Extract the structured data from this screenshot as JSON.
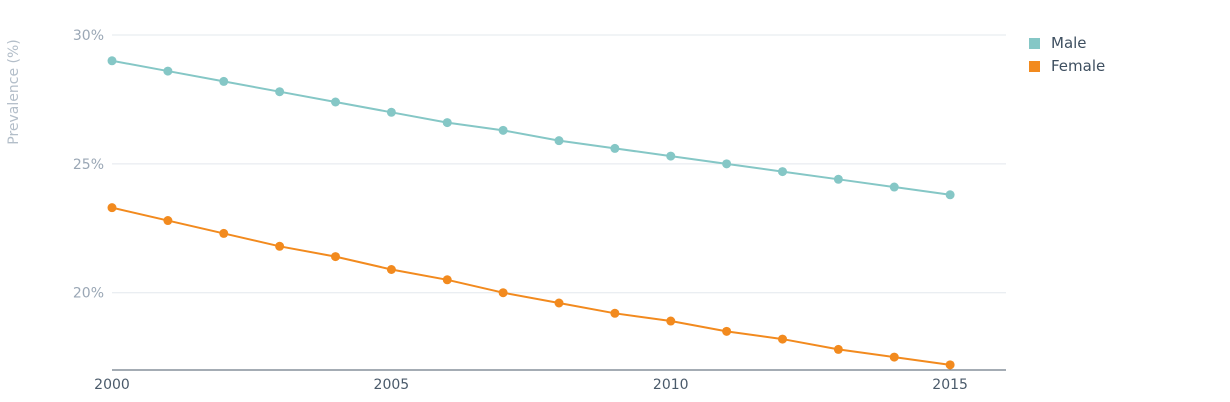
{
  "chart_data": {
    "type": "line",
    "title": "",
    "xlabel": "",
    "ylabel": "Prevalence (%)",
    "x": [
      2000,
      2001,
      2002,
      2003,
      2004,
      2005,
      2006,
      2007,
      2008,
      2009,
      2010,
      2011,
      2012,
      2013,
      2014,
      2015
    ],
    "xlim": [
      2000,
      2016
    ],
    "x_ticks": [
      2000,
      2005,
      2010,
      2015
    ],
    "x_tick_labels": [
      "2000",
      "2005",
      "2010",
      "2015"
    ],
    "ylim": [
      17,
      30
    ],
    "y_ticks": [
      20,
      25,
      30
    ],
    "y_tick_labels": [
      "20%",
      "25%",
      "30%"
    ],
    "grid": true,
    "legend_position": "top-right",
    "series": [
      {
        "name": "Male",
        "color": "#85c7c6",
        "values": [
          29.0,
          28.6,
          28.2,
          27.8,
          27.4,
          27.0,
          26.6,
          26.3,
          25.9,
          25.6,
          25.3,
          25.0,
          24.7,
          24.4,
          24.1,
          23.8
        ]
      },
      {
        "name": "Female",
        "color": "#f28a1e",
        "values": [
          23.3,
          22.8,
          22.3,
          21.8,
          21.4,
          20.9,
          20.5,
          20.0,
          19.6,
          19.2,
          18.9,
          18.5,
          18.2,
          17.8,
          17.5,
          17.2
        ]
      }
    ]
  }
}
